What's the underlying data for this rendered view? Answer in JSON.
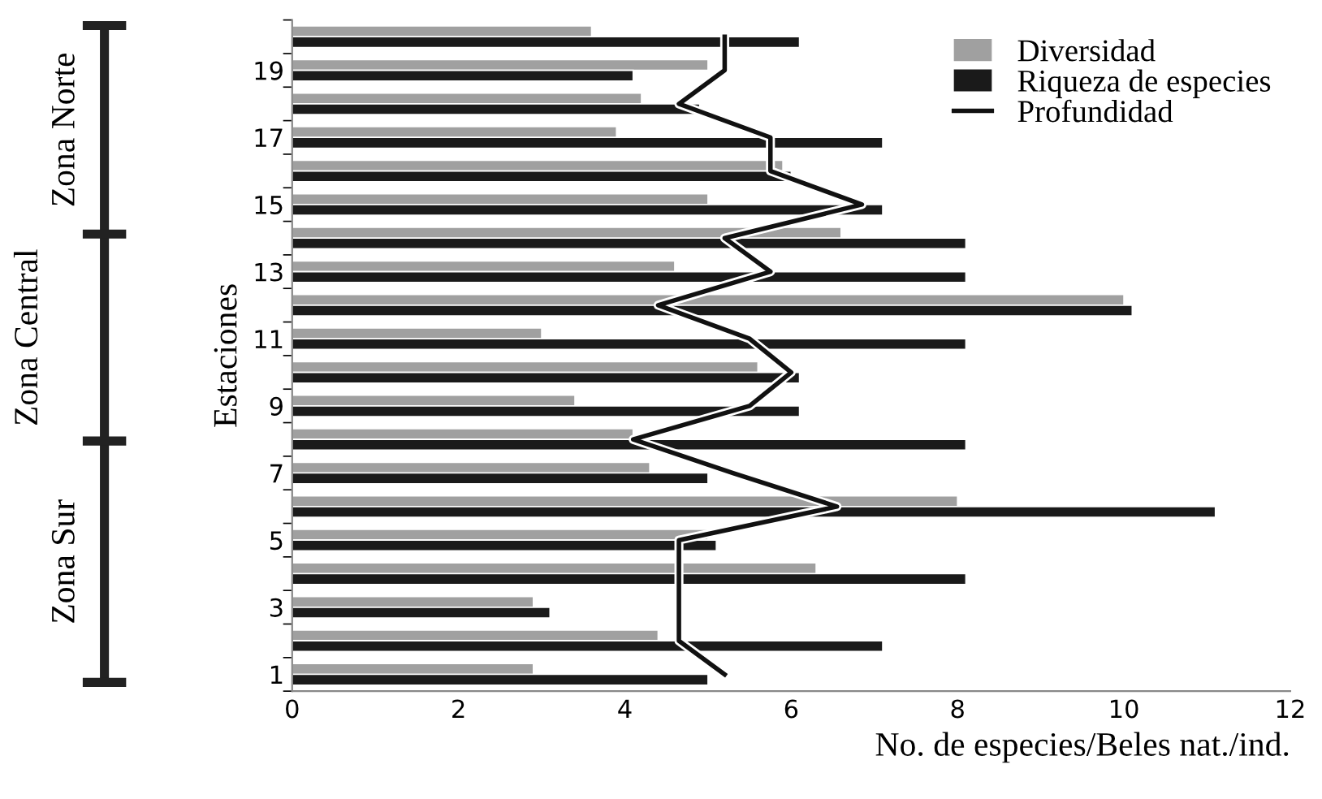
{
  "chart_data": {
    "type": "bar",
    "orientation": "horizontal",
    "xlabel": "No. de especies/Beles nat./ind.",
    "ylabel": "Estaciones",
    "categories": [
      null,
      "19",
      null,
      "17",
      null,
      "15",
      null,
      "13",
      null,
      "11",
      null,
      "9",
      null,
      "7",
      null,
      "5",
      null,
      "3",
      null,
      "1"
    ],
    "series": [
      {
        "name": "Diversidad",
        "color": "#a0a0a0",
        "values": [
          3.6,
          5.0,
          4.2,
          3.9,
          5.9,
          5.0,
          6.6,
          4.6,
          10.0,
          3.0,
          5.6,
          3.4,
          4.1,
          4.3,
          8.0,
          5.0,
          6.3,
          2.9,
          4.4,
          2.9
        ]
      },
      {
        "name": "Riqueza de especies",
        "color": "#1a1a1a",
        "values": [
          6.1,
          4.1,
          4.9,
          7.1,
          6.0,
          7.1,
          8.1,
          8.1,
          10.1,
          8.1,
          6.1,
          6.1,
          8.1,
          5.0,
          11.1,
          5.1,
          8.1,
          3.1,
          7.1,
          5.0
        ]
      },
      {
        "name": "Profundidad",
        "type": "line",
        "color": "#111111",
        "values": [
          5.2,
          5.2,
          4.65,
          5.75,
          5.75,
          6.85,
          5.2,
          5.75,
          4.4,
          5.5,
          6.0,
          5.5,
          4.1,
          5.3,
          6.55,
          4.65,
          4.65,
          4.65,
          4.65,
          5.2
        ]
      }
    ],
    "xlim": [
      0,
      12
    ],
    "xticks": [
      0,
      2,
      4,
      6,
      8,
      10,
      12
    ],
    "legend": "top right",
    "grid": false,
    "annotations": [
      "Zona Norte",
      "Zona Central",
      "Zona Sur"
    ]
  }
}
